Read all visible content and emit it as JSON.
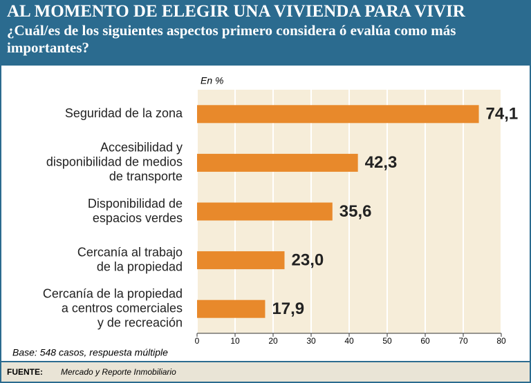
{
  "chart_data": {
    "type": "hbar",
    "title": "AL MOMENTO DE ELEGIR UNA VIVIENDA PARA VIVIR",
    "subtitle": "¿Cuál/es de los siguientes aspectos primero considera ó evalúa como más importantes?",
    "unit_label": "En %",
    "categories": [
      [
        "Seguridad de la zona"
      ],
      [
        "Accesibilidad y",
        "disponibilidad de medios",
        "de transporte"
      ],
      [
        "Disponibilidad de",
        "espacios verdes"
      ],
      [
        "Cercanía al trabajo",
        "de la propiedad"
      ],
      [
        "Cercanía de la propiedad",
        "a centros comerciales",
        "y de recreación"
      ]
    ],
    "values": [
      74.1,
      42.3,
      35.6,
      23.0,
      17.9
    ],
    "value_labels": [
      "74,1",
      "42,3",
      "35,6",
      "23,0",
      "17,9"
    ],
    "color": "#e8892b",
    "xlim": [
      0,
      80
    ],
    "xticks": [
      0,
      10,
      20,
      30,
      40,
      50,
      60,
      70,
      80
    ],
    "grid": true,
    "note": "Base: 548 casos, respuesta múltiple",
    "source_label": "FUENTE:",
    "source": "Mercado y Reporte Inmobiliario"
  }
}
